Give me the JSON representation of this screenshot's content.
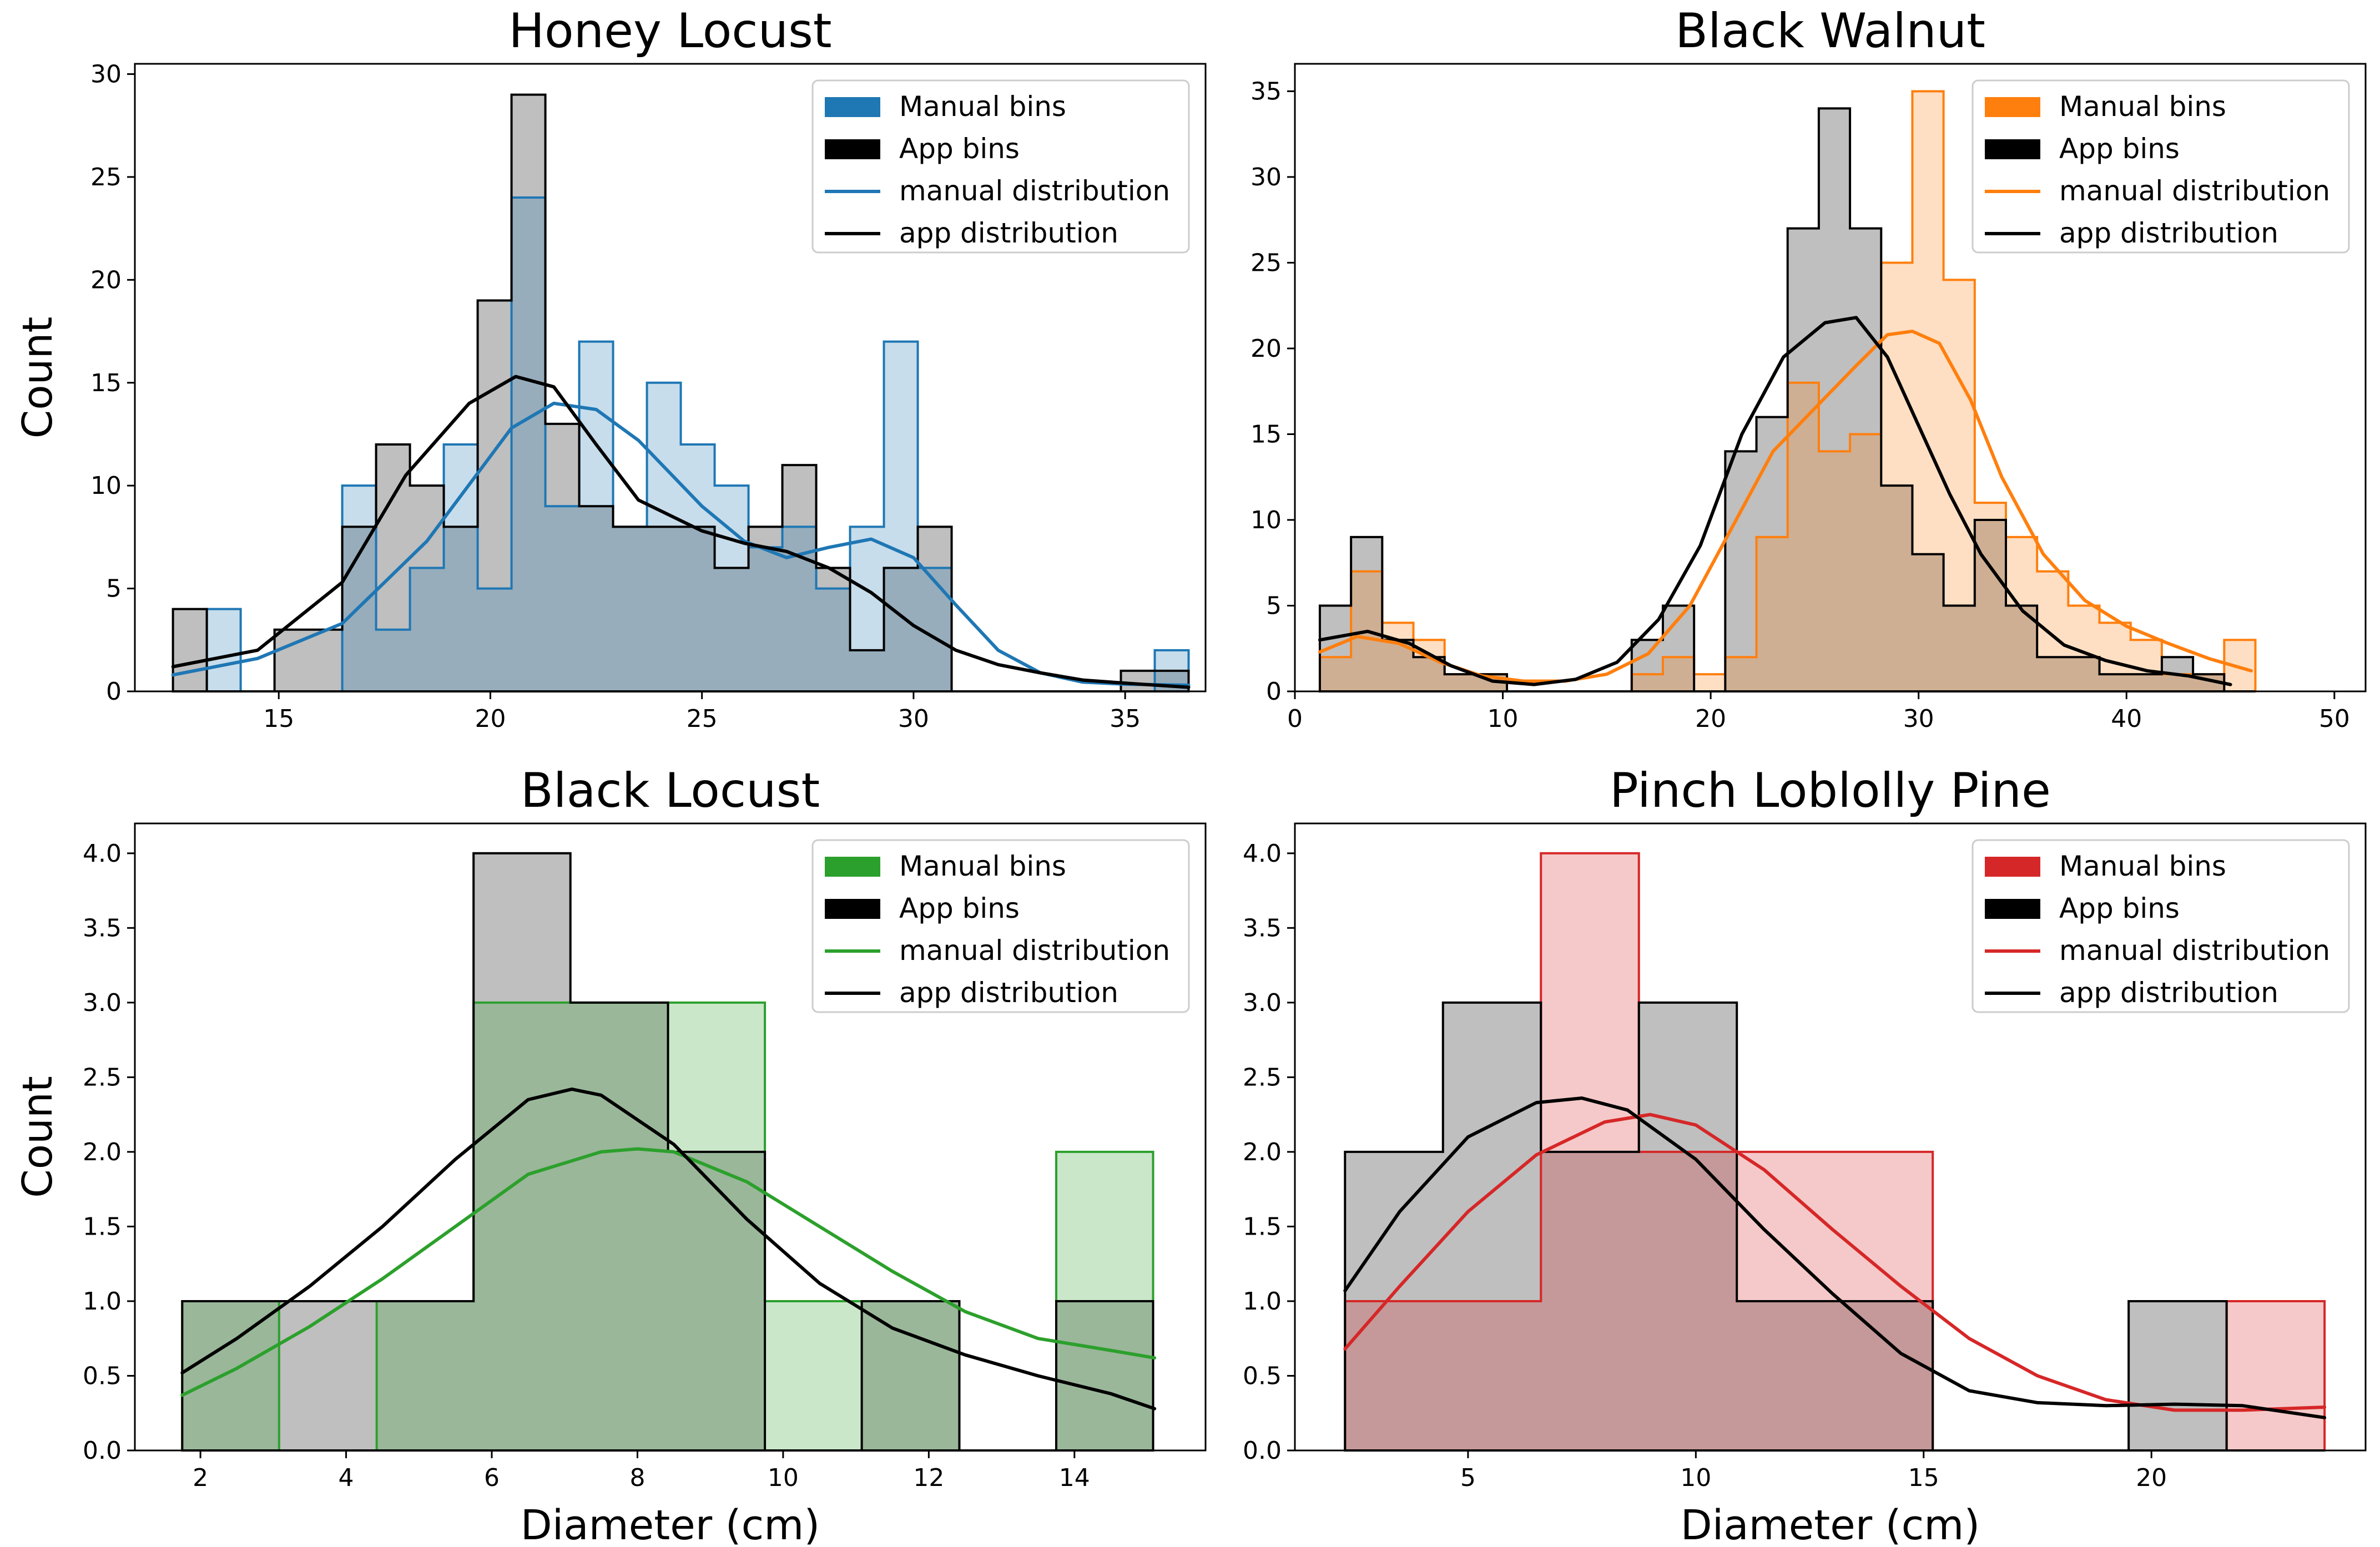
{
  "chart_data": [
    {
      "type": "histogram",
      "title": "Honey Locust",
      "xlabel": "",
      "ylabel": "Count",
      "xlim": [
        11.6,
        36.9
      ],
      "ylim": [
        0,
        30.5
      ],
      "xticks": [
        15,
        20,
        25,
        30,
        35
      ],
      "yticks": [
        0,
        5,
        10,
        15,
        20,
        25,
        30
      ],
      "legend_position": "top-right",
      "color": "#1f77b4",
      "legend": [
        "Manual bins",
        "App bins",
        "manual distribution",
        "app distribution"
      ],
      "series": [
        {
          "name": "Manual bins",
          "edges": [
            12.5,
            13.3,
            14.1,
            14.9,
            15.7,
            16.5,
            17.3,
            18.1,
            18.9,
            19.7,
            20.5,
            21.3,
            22.1,
            22.9,
            23.7,
            24.5,
            25.3,
            26.1,
            26.9,
            27.7,
            28.5,
            29.3,
            30.1,
            30.9,
            31.7,
            32.5,
            33.3,
            34.1,
            34.9,
            35.7,
            36.5
          ],
          "counts": [
            0,
            4,
            0,
            0,
            0,
            10,
            3,
            6,
            12,
            5,
            24,
            9,
            17,
            8,
            15,
            12,
            10,
            7,
            8,
            5,
            8,
            17,
            6,
            0,
            0,
            0,
            0,
            0,
            0,
            2
          ]
        },
        {
          "name": "App bins",
          "edges": [
            12.5,
            13.3,
            14.1,
            14.9,
            15.7,
            16.5,
            17.3,
            18.1,
            18.9,
            19.7,
            20.5,
            21.3,
            22.1,
            22.9,
            23.7,
            24.5,
            25.3,
            26.1,
            26.9,
            27.7,
            28.5,
            29.3,
            30.1,
            30.9,
            31.7,
            32.5,
            33.3,
            34.1,
            34.9,
            35.7,
            36.5
          ],
          "counts": [
            4,
            0,
            0,
            3,
            3,
            8,
            12,
            10,
            8,
            19,
            29,
            13,
            9,
            8,
            8,
            8,
            6,
            8,
            11,
            6,
            2,
            6,
            8,
            0,
            0,
            0,
            0,
            0,
            1,
            1
          ]
        },
        {
          "name": "manual distribution",
          "x": [
            12.5,
            14.5,
            16.5,
            18.5,
            20.5,
            21.5,
            22.5,
            23.5,
            25.0,
            26.0,
            27.0,
            28.0,
            29.0,
            30.0,
            31.0,
            32.0,
            33.0,
            34.0,
            35.0,
            36.5
          ],
          "y": [
            0.8,
            1.6,
            3.3,
            7.3,
            12.8,
            14.0,
            13.7,
            12.2,
            9.0,
            7.3,
            6.5,
            7.0,
            7.4,
            6.5,
            4.2,
            2.0,
            0.9,
            0.45,
            0.35,
            0.3
          ]
        },
        {
          "name": "app distribution",
          "x": [
            12.5,
            14.5,
            16.5,
            18.0,
            19.5,
            20.6,
            21.5,
            22.5,
            23.5,
            25.0,
            26.0,
            27.0,
            28.0,
            29.0,
            30.0,
            31.0,
            32.0,
            33.0,
            34.0,
            35.0,
            36.5
          ],
          "y": [
            1.2,
            2.0,
            5.3,
            10.5,
            14.0,
            15.3,
            14.8,
            12.0,
            9.3,
            7.8,
            7.2,
            6.8,
            6.0,
            4.8,
            3.2,
            2.0,
            1.3,
            0.9,
            0.55,
            0.4,
            0.2
          ]
        }
      ]
    },
    {
      "type": "histogram",
      "title": "Black Walnut",
      "xlabel": "",
      "ylabel": "",
      "xlim": [
        0,
        51.5
      ],
      "ylim": [
        0,
        36.6
      ],
      "xticks": [
        0,
        10,
        20,
        30,
        40,
        50
      ],
      "yticks": [
        0,
        5,
        10,
        15,
        20,
        25,
        30,
        35
      ],
      "legend_position": "top-right",
      "color": "#ff7f0e",
      "legend": [
        "Manual bins",
        "App bins",
        "manual distribution",
        "app distribution"
      ],
      "series": [
        {
          "name": "Manual bins",
          "edges": [
            1.2,
            2.7,
            4.2,
            5.7,
            7.2,
            8.7,
            10.2,
            11.7,
            13.2,
            14.7,
            16.2,
            17.7,
            19.2,
            20.7,
            22.2,
            23.7,
            25.2,
            26.7,
            28.2,
            29.7,
            31.2,
            32.7,
            34.2,
            35.7,
            37.2,
            38.7,
            40.2,
            41.7,
            43.2,
            44.7,
            46.2
          ],
          "counts": [
            2,
            7,
            4,
            3,
            1,
            1,
            0,
            0,
            0,
            0,
            1,
            2,
            1,
            2,
            9,
            18,
            14,
            15,
            25,
            35,
            24,
            11,
            9,
            7,
            5,
            4,
            3,
            1,
            1,
            3
          ]
        },
        {
          "name": "App bins",
          "edges": [
            1.2,
            2.7,
            4.2,
            5.7,
            7.2,
            8.7,
            10.2,
            11.7,
            13.2,
            14.7,
            16.2,
            17.7,
            19.2,
            20.7,
            22.2,
            23.7,
            25.2,
            26.7,
            28.2,
            29.7,
            31.2,
            32.7,
            34.2,
            35.7,
            37.2,
            38.7,
            40.2,
            41.7,
            43.2,
            44.7,
            46.2
          ],
          "counts": [
            5,
            9,
            3,
            2,
            1,
            1,
            0,
            0,
            0,
            0,
            3,
            5,
            0,
            14,
            16,
            27,
            34,
            27,
            12,
            8,
            5,
            10,
            5,
            2,
            2,
            1,
            1,
            2,
            1,
            0
          ]
        },
        {
          "name": "manual distribution",
          "x": [
            1.2,
            3.0,
            5.0,
            7.0,
            9.0,
            11.0,
            13.0,
            15.0,
            17.0,
            19.0,
            21.0,
            23.0,
            25.0,
            27.0,
            28.5,
            29.7,
            31.0,
            32.5,
            34.0,
            36.0,
            38.0,
            40.0,
            42.0,
            44.0,
            46.0
          ],
          "y": [
            2.3,
            3.2,
            2.8,
            1.7,
            0.9,
            0.6,
            0.6,
            1.0,
            2.2,
            5.0,
            9.5,
            14.0,
            16.5,
            19.0,
            20.8,
            21.0,
            20.3,
            17.0,
            12.5,
            8.0,
            5.3,
            3.8,
            2.8,
            1.9,
            1.2
          ]
        },
        {
          "name": "app distribution",
          "x": [
            1.2,
            3.5,
            5.5,
            7.5,
            9.5,
            11.5,
            13.5,
            15.5,
            17.5,
            19.5,
            21.5,
            23.5,
            25.5,
            27.0,
            28.5,
            30.0,
            31.5,
            33.0,
            35.0,
            37.0,
            39.0,
            41.0,
            43.0,
            45.0
          ],
          "y": [
            3.0,
            3.5,
            2.8,
            1.5,
            0.6,
            0.4,
            0.7,
            1.7,
            4.2,
            8.5,
            15.0,
            19.5,
            21.5,
            21.8,
            19.5,
            15.5,
            11.5,
            8.0,
            4.7,
            2.7,
            1.8,
            1.2,
            0.9,
            0.4
          ]
        }
      ]
    },
    {
      "type": "histogram",
      "title": "Black Locust",
      "xlabel": "Diameter (cm)",
      "ylabel": "Count",
      "xlim": [
        1.1,
        15.8
      ],
      "ylim": [
        0,
        4.2
      ],
      "xticks": [
        2,
        4,
        6,
        8,
        10,
        12,
        14
      ],
      "yticks": [
        0.0,
        0.5,
        1.0,
        1.5,
        2.0,
        2.5,
        3.0,
        3.5,
        4.0
      ],
      "legend_position": "top-right",
      "color": "#2ca02c",
      "legend": [
        "Manual bins",
        "App bins",
        "manual distribution",
        "app distribution"
      ],
      "series": [
        {
          "name": "Manual bins",
          "edges": [
            1.75,
            3.08,
            4.42,
            5.75,
            7.08,
            8.42,
            9.75,
            11.08,
            12.42,
            13.75,
            15.08
          ],
          "counts": [
            1,
            0,
            1,
            3,
            3,
            3,
            1,
            1,
            0,
            2
          ]
        },
        {
          "name": "App bins",
          "edges": [
            1.75,
            3.08,
            4.42,
            5.75,
            7.08,
            8.42,
            9.75,
            11.08,
            12.42,
            13.75,
            15.08
          ],
          "counts": [
            1,
            1,
            1,
            4,
            3,
            2,
            0,
            1,
            0,
            1
          ]
        },
        {
          "name": "manual distribution",
          "x": [
            1.75,
            2.5,
            3.5,
            4.5,
            5.5,
            6.5,
            7.5,
            8.0,
            8.5,
            9.5,
            10.5,
            11.5,
            12.5,
            13.5,
            14.5,
            15.1
          ],
          "y": [
            0.37,
            0.55,
            0.83,
            1.15,
            1.5,
            1.85,
            2.0,
            2.02,
            2.0,
            1.8,
            1.5,
            1.2,
            0.93,
            0.75,
            0.67,
            0.62
          ]
        },
        {
          "name": "app distribution",
          "x": [
            1.75,
            2.5,
            3.5,
            4.5,
            5.5,
            6.5,
            7.1,
            7.5,
            8.5,
            9.5,
            10.5,
            11.5,
            12.5,
            13.5,
            14.5,
            15.1
          ],
          "y": [
            0.52,
            0.75,
            1.1,
            1.5,
            1.95,
            2.35,
            2.42,
            2.38,
            2.05,
            1.55,
            1.12,
            0.82,
            0.64,
            0.5,
            0.38,
            0.28
          ]
        }
      ]
    },
    {
      "type": "histogram",
      "title": "Pinch Loblolly Pine",
      "xlabel": "Diameter (cm)",
      "ylabel": "",
      "xlim": [
        1.2,
        24.7
      ],
      "ylim": [
        0,
        4.2
      ],
      "xticks": [
        5,
        10,
        15,
        20
      ],
      "yticks": [
        0.0,
        0.5,
        1.0,
        1.5,
        2.0,
        2.5,
        3.0,
        3.5,
        4.0
      ],
      "legend_position": "top-right",
      "color": "#d62728",
      "legend": [
        "Manual bins",
        "App bins",
        "manual distribution",
        "app distribution"
      ],
      "series": [
        {
          "name": "Manual bins",
          "edges": [
            2.3,
            4.45,
            6.6,
            8.75,
            10.9,
            13.05,
            15.2,
            17.35,
            19.5,
            21.65,
            23.8
          ],
          "counts": [
            1,
            1,
            4,
            2,
            2,
            2,
            0,
            0,
            0,
            1
          ]
        },
        {
          "name": "App bins",
          "edges": [
            2.3,
            4.45,
            6.6,
            8.75,
            10.9,
            13.05,
            15.2,
            17.35,
            19.5,
            21.65,
            23.8
          ],
          "counts": [
            2,
            3,
            2,
            3,
            1,
            1,
            0,
            0,
            1,
            0
          ]
        },
        {
          "name": "manual distribution",
          "x": [
            2.3,
            3.5,
            5.0,
            6.5,
            8.0,
            9.0,
            10.0,
            11.5,
            13.0,
            14.5,
            16.0,
            17.5,
            19.0,
            20.5,
            22.0,
            23.8
          ],
          "y": [
            0.68,
            1.1,
            1.6,
            1.98,
            2.2,
            2.25,
            2.18,
            1.88,
            1.48,
            1.1,
            0.75,
            0.5,
            0.34,
            0.27,
            0.27,
            0.29
          ]
        },
        {
          "name": "app distribution",
          "x": [
            2.3,
            3.5,
            5.0,
            6.5,
            7.5,
            8.5,
            10.0,
            11.5,
            13.0,
            14.5,
            16.0,
            17.5,
            19.0,
            20.5,
            22.0,
            23.8
          ],
          "y": [
            1.07,
            1.6,
            2.1,
            2.33,
            2.36,
            2.28,
            1.95,
            1.48,
            1.05,
            0.65,
            0.4,
            0.32,
            0.3,
            0.31,
            0.3,
            0.22
          ]
        }
      ]
    }
  ]
}
